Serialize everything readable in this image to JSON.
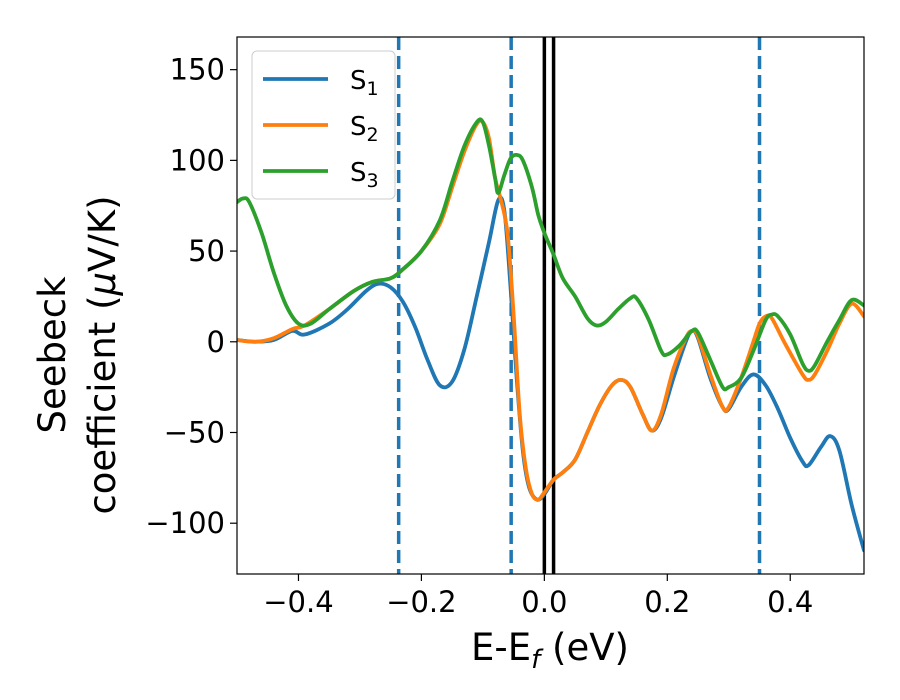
{
  "chart_data": {
    "type": "line",
    "xlabel": "E-E_f (eV)",
    "xlabel_main": "E-E",
    "xlabel_sub": "f",
    "xlabel_unit": " (eV)",
    "ylabel_line1": "Seebeck",
    "ylabel_line2": "coefficient  (",
    "ylabel_mu": "μ",
    "ylabel_end": "V/K)",
    "xlim": [
      -0.5,
      0.52
    ],
    "ylim": [
      -128,
      168
    ],
    "x_ticks": [
      -0.4,
      -0.2,
      0.0,
      0.2,
      0.4
    ],
    "x_tick_labels": [
      "−0.4",
      "−0.2",
      "0.0",
      "0.2",
      "0.4"
    ],
    "y_ticks": [
      150,
      100,
      50,
      0,
      -50,
      -100
    ],
    "y_tick_labels": [
      "150",
      "100",
      "50",
      "0",
      "−50",
      "−100"
    ],
    "grid": false,
    "legend_position": "top-left",
    "series": [
      {
        "name": "S1",
        "label_main": "S",
        "label_sub": "1",
        "color": "#1f77b4",
        "points": [
          [
            -0.5,
            1
          ],
          [
            -0.47,
            0
          ],
          [
            -0.44,
            1
          ],
          [
            -0.41,
            6
          ],
          [
            -0.39,
            4
          ],
          [
            -0.35,
            10
          ],
          [
            -0.32,
            18
          ],
          [
            -0.29,
            28
          ],
          [
            -0.27,
            32
          ],
          [
            -0.25,
            30
          ],
          [
            -0.23,
            22
          ],
          [
            -0.21,
            8
          ],
          [
            -0.19,
            -10
          ],
          [
            -0.17,
            -24
          ],
          [
            -0.15,
            -22
          ],
          [
            -0.13,
            -4
          ],
          [
            -0.11,
            25
          ],
          [
            -0.09,
            55
          ],
          [
            -0.075,
            78
          ],
          [
            -0.065,
            72
          ],
          [
            -0.055,
            30
          ],
          [
            -0.045,
            -20
          ],
          [
            -0.035,
            -60
          ],
          [
            -0.025,
            -80
          ],
          [
            -0.012,
            -87
          ],
          [
            0.0,
            -84
          ],
          [
            0.015,
            -76
          ],
          [
            0.03,
            -72
          ],
          [
            0.05,
            -65
          ],
          [
            0.07,
            -50
          ],
          [
            0.09,
            -35
          ],
          [
            0.11,
            -24
          ],
          [
            0.125,
            -21
          ],
          [
            0.14,
            -25
          ],
          [
            0.16,
            -40
          ],
          [
            0.175,
            -49
          ],
          [
            0.19,
            -42
          ],
          [
            0.21,
            -20
          ],
          [
            0.23,
            0
          ],
          [
            0.24,
            6
          ],
          [
            0.25,
            2
          ],
          [
            0.27,
            -20
          ],
          [
            0.29,
            -36
          ],
          [
            0.3,
            -37
          ],
          [
            0.32,
            -25
          ],
          [
            0.34,
            -18
          ],
          [
            0.36,
            -24
          ],
          [
            0.38,
            -37
          ],
          [
            0.4,
            -53
          ],
          [
            0.42,
            -66
          ],
          [
            0.43,
            -68
          ],
          [
            0.45,
            -58
          ],
          [
            0.465,
            -52
          ],
          [
            0.48,
            -60
          ],
          [
            0.5,
            -90
          ],
          [
            0.52,
            -115
          ]
        ]
      },
      {
        "name": "S2",
        "label_main": "S",
        "label_sub": "2",
        "color": "#ff7f0e",
        "points": [
          [
            -0.5,
            1
          ],
          [
            -0.47,
            0
          ],
          [
            -0.44,
            2
          ],
          [
            -0.41,
            7
          ],
          [
            -0.39,
            9
          ],
          [
            -0.35,
            18
          ],
          [
            -0.31,
            28
          ],
          [
            -0.28,
            33
          ],
          [
            -0.25,
            35
          ],
          [
            -0.23,
            40
          ],
          [
            -0.2,
            50
          ],
          [
            -0.17,
            65
          ],
          [
            -0.15,
            85
          ],
          [
            -0.13,
            105
          ],
          [
            -0.11,
            120
          ],
          [
            -0.1,
            121
          ],
          [
            -0.09,
            112
          ],
          [
            -0.08,
            90
          ],
          [
            -0.072,
            80
          ],
          [
            -0.06,
            60
          ],
          [
            -0.05,
            15
          ],
          [
            -0.04,
            -40
          ],
          [
            -0.03,
            -70
          ],
          [
            -0.02,
            -84
          ],
          [
            -0.01,
            -87
          ],
          [
            0.0,
            -83
          ],
          [
            0.015,
            -76
          ],
          [
            0.03,
            -72
          ],
          [
            0.05,
            -65
          ],
          [
            0.07,
            -50
          ],
          [
            0.09,
            -35
          ],
          [
            0.11,
            -24
          ],
          [
            0.125,
            -21
          ],
          [
            0.14,
            -25
          ],
          [
            0.16,
            -40
          ],
          [
            0.175,
            -49
          ],
          [
            0.19,
            -40
          ],
          [
            0.21,
            -15
          ],
          [
            0.23,
            2
          ],
          [
            0.24,
            6
          ],
          [
            0.25,
            3
          ],
          [
            0.27,
            -18
          ],
          [
            0.29,
            -36
          ],
          [
            0.3,
            -36
          ],
          [
            0.32,
            -20
          ],
          [
            0.34,
            0
          ],
          [
            0.35,
            10
          ],
          [
            0.36,
            14
          ],
          [
            0.37,
            13
          ],
          [
            0.39,
            0
          ],
          [
            0.42,
            -18
          ],
          [
            0.43,
            -21
          ],
          [
            0.44,
            -18
          ],
          [
            0.46,
            -5
          ],
          [
            0.48,
            10
          ],
          [
            0.5,
            21
          ],
          [
            0.52,
            14
          ]
        ]
      },
      {
        "name": "S3",
        "label_main": "S",
        "label_sub": "3",
        "color": "#2ca02c",
        "points": [
          [
            -0.5,
            77
          ],
          [
            -0.49,
            79
          ],
          [
            -0.48,
            77
          ],
          [
            -0.46,
            60
          ],
          [
            -0.44,
            38
          ],
          [
            -0.42,
            20
          ],
          [
            -0.4,
            10
          ],
          [
            -0.38,
            10
          ],
          [
            -0.35,
            18
          ],
          [
            -0.31,
            28
          ],
          [
            -0.28,
            33
          ],
          [
            -0.25,
            35
          ],
          [
            -0.23,
            40
          ],
          [
            -0.2,
            50
          ],
          [
            -0.17,
            67
          ],
          [
            -0.15,
            88
          ],
          [
            -0.13,
            108
          ],
          [
            -0.11,
            121
          ],
          [
            -0.1,
            121
          ],
          [
            -0.09,
            108
          ],
          [
            -0.08,
            90
          ],
          [
            -0.075,
            82
          ],
          [
            -0.065,
            92
          ],
          [
            -0.055,
            101
          ],
          [
            -0.045,
            103
          ],
          [
            -0.035,
            100
          ],
          [
            -0.02,
            85
          ],
          [
            -0.01,
            70
          ],
          [
            0.0,
            60
          ],
          [
            0.015,
            48
          ],
          [
            0.03,
            35
          ],
          [
            0.05,
            25
          ],
          [
            0.07,
            13
          ],
          [
            0.085,
            9
          ],
          [
            0.1,
            11
          ],
          [
            0.12,
            18
          ],
          [
            0.14,
            24
          ],
          [
            0.15,
            24
          ],
          [
            0.17,
            12
          ],
          [
            0.19,
            -5
          ],
          [
            0.2,
            -7
          ],
          [
            0.22,
            -2
          ],
          [
            0.24,
            6
          ],
          [
            0.25,
            5
          ],
          [
            0.27,
            -10
          ],
          [
            0.29,
            -25
          ],
          [
            0.3,
            -25
          ],
          [
            0.32,
            -20
          ],
          [
            0.34,
            -5
          ],
          [
            0.36,
            12
          ],
          [
            0.37,
            15
          ],
          [
            0.38,
            14
          ],
          [
            0.4,
            4
          ],
          [
            0.42,
            -12
          ],
          [
            0.43,
            -16
          ],
          [
            0.44,
            -13
          ],
          [
            0.46,
            0
          ],
          [
            0.48,
            12
          ],
          [
            0.5,
            23
          ],
          [
            0.52,
            20
          ]
        ]
      }
    ],
    "vlines": [
      {
        "x": -0.237,
        "style": "dashed",
        "color": "#1f77b4"
      },
      {
        "x": -0.054,
        "style": "dashed",
        "color": "#1f77b4"
      },
      {
        "x": 0.35,
        "style": "dashed",
        "color": "#1f77b4"
      },
      {
        "x": 0.0,
        "style": "solid",
        "color": "#000000"
      },
      {
        "x": 0.015,
        "style": "solid",
        "color": "#000000"
      }
    ]
  }
}
